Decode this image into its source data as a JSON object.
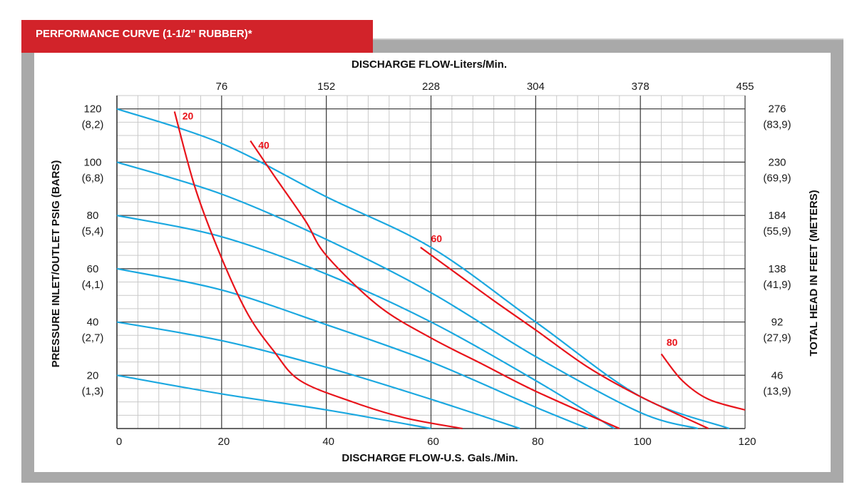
{
  "header": {
    "title": "PERFORMANCE CURVE  (1-1/2\" RUBBER)*"
  },
  "chart_data": {
    "type": "line",
    "title": "PERFORMANCE CURVE  (1-1/2\" RUBBER)*",
    "xlabel": "DISCHARGE FLOW-U.S. Gals./Min.",
    "x2label": "DISCHARGE FLOW-Liters/Min.",
    "ylabel": "PRESSURE INLET/OUTLET PSIG (BARS)",
    "y2label": "TOTAL HEAD IN FEET (METERS)",
    "xlim": [
      0,
      120
    ],
    "ylim": [
      0,
      125
    ],
    "grid": true,
    "x_ticks": [
      {
        "value": 0,
        "label": "0"
      },
      {
        "value": 20,
        "label": "20"
      },
      {
        "value": 40,
        "label": "40"
      },
      {
        "value": 60,
        "label": "60"
      },
      {
        "value": 80,
        "label": "80"
      },
      {
        "value": 100,
        "label": "100"
      },
      {
        "value": 120,
        "label": "120"
      }
    ],
    "x2_ticks": [
      {
        "value": 20,
        "label": "76"
      },
      {
        "value": 40,
        "label": "152"
      },
      {
        "value": 60,
        "label": "228"
      },
      {
        "value": 80,
        "label": "304"
      },
      {
        "value": 100,
        "label": "378"
      },
      {
        "value": 120,
        "label": "455"
      }
    ],
    "y_ticks": [
      {
        "value": 120,
        "label": "120",
        "sub": "(8,2)"
      },
      {
        "value": 100,
        "label": "100",
        "sub": "(6,8)"
      },
      {
        "value": 80,
        "label": "80",
        "sub": "(5,4)"
      },
      {
        "value": 60,
        "label": "60",
        "sub": "(4,1)"
      },
      {
        "value": 40,
        "label": "40",
        "sub": "(2,7)"
      },
      {
        "value": 20,
        "label": "20",
        "sub": "(1,3)"
      }
    ],
    "y2_ticks": [
      {
        "value": 120,
        "label": "276",
        "sub": "(83,9)"
      },
      {
        "value": 100,
        "label": "230",
        "sub": "(69,9)"
      },
      {
        "value": 80,
        "label": "184",
        "sub": "(55,9)"
      },
      {
        "value": 60,
        "label": "138",
        "sub": "(41,9)"
      },
      {
        "value": 40,
        "label": "92",
        "sub": "(27,9)"
      },
      {
        "value": 20,
        "label": "46",
        "sub": "(13,9)"
      }
    ],
    "pressure_curves": [
      {
        "color": "#1ba8e0",
        "points": [
          [
            0,
            120
          ],
          [
            20,
            107
          ],
          [
            40,
            87
          ],
          [
            60,
            68
          ],
          [
            80,
            40
          ],
          [
            100,
            12
          ],
          [
            117,
            0
          ]
        ]
      },
      {
        "color": "#1ba8e0",
        "points": [
          [
            0,
            100
          ],
          [
            20,
            88
          ],
          [
            40,
            71
          ],
          [
            60,
            51
          ],
          [
            80,
            27
          ],
          [
            100,
            6
          ],
          [
            111,
            0
          ]
        ]
      },
      {
        "color": "#1ba8e0",
        "points": [
          [
            0,
            80
          ],
          [
            20,
            72
          ],
          [
            40,
            58
          ],
          [
            60,
            40
          ],
          [
            80,
            18
          ],
          [
            95,
            0
          ]
        ]
      },
      {
        "color": "#1ba8e0",
        "points": [
          [
            0,
            60
          ],
          [
            20,
            52
          ],
          [
            40,
            39
          ],
          [
            60,
            25
          ],
          [
            80,
            8
          ],
          [
            90,
            0
          ]
        ]
      },
      {
        "color": "#1ba8e0",
        "points": [
          [
            0,
            40
          ],
          [
            20,
            33
          ],
          [
            40,
            23
          ],
          [
            60,
            11
          ],
          [
            77,
            0
          ]
        ]
      },
      {
        "color": "#1ba8e0",
        "points": [
          [
            0,
            20
          ],
          [
            20,
            13
          ],
          [
            40,
            7
          ],
          [
            60,
            0
          ]
        ]
      }
    ],
    "air_curves": [
      {
        "label": "20",
        "color": "#e8141b",
        "label_at": [
          12.5,
          116
        ],
        "points": [
          [
            11,
            119
          ],
          [
            15,
            90
          ],
          [
            20,
            64
          ],
          [
            25,
            43
          ],
          [
            30,
            29
          ],
          [
            35,
            18
          ],
          [
            45,
            10
          ],
          [
            55,
            4
          ],
          [
            66,
            0
          ]
        ]
      },
      {
        "label": "40",
        "color": "#e8141b",
        "label_at": [
          27,
          105
        ],
        "points": [
          [
            25.5,
            108
          ],
          [
            30,
            95
          ],
          [
            36,
            78
          ],
          [
            40,
            65
          ],
          [
            50,
            46
          ],
          [
            60,
            34
          ],
          [
            70,
            24
          ],
          [
            80,
            14
          ],
          [
            96,
            0
          ]
        ]
      },
      {
        "label": "60",
        "color": "#e8141b",
        "label_at": [
          60,
          70
        ],
        "points": [
          [
            58,
            68
          ],
          [
            65,
            58
          ],
          [
            72,
            48
          ],
          [
            80,
            37
          ],
          [
            90,
            23
          ],
          [
            100,
            12
          ],
          [
            113,
            0
          ]
        ]
      },
      {
        "label": "80",
        "color": "#e8141b",
        "label_at": [
          105,
          31
        ],
        "points": [
          [
            104,
            28
          ],
          [
            108,
            18
          ],
          [
            113,
            11
          ],
          [
            120,
            7
          ]
        ]
      }
    ]
  }
}
